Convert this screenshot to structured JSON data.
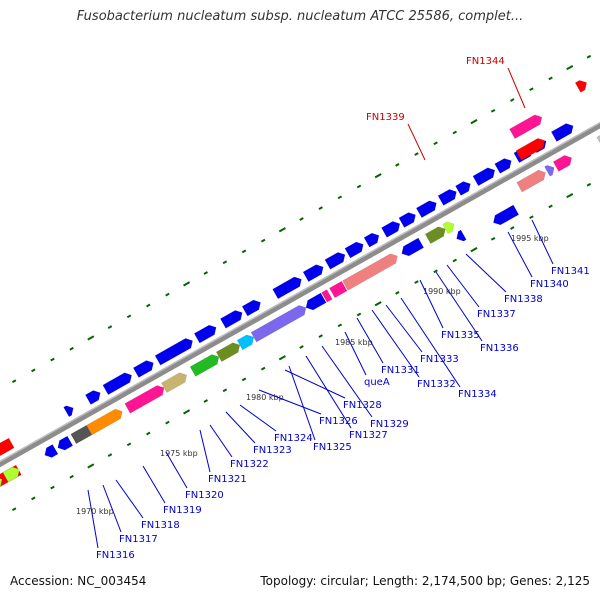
{
  "header": {
    "title": "Fusobacterium nucleatum subsp. nucleatum ATCC 25586, complet..."
  },
  "footer": {
    "accession": "Accession: NC_003454",
    "topology": "Topology: circular; Length: 2,174,500 bp; Genes: 2,125"
  },
  "colors": {
    "backbone": "#8c8c8c",
    "gene_default": "#0000ee",
    "label": "#0000cc",
    "label_highlight": "#cc0000",
    "gc_ticks": "#006600"
  },
  "scale": {
    "kbp_marks": [
      "1970 kbp",
      "1975 kbp",
      "1980 kbp",
      "1985 kbp",
      "1990 kbp",
      "1995 kbp"
    ]
  },
  "genes": [
    {
      "label": "FN1316",
      "highlight": false
    },
    {
      "label": "FN1317",
      "highlight": false
    },
    {
      "label": "FN1318",
      "highlight": false
    },
    {
      "label": "FN1319",
      "highlight": false
    },
    {
      "label": "FN1320",
      "highlight": false
    },
    {
      "label": "FN1321",
      "highlight": false
    },
    {
      "label": "FN1322",
      "highlight": false
    },
    {
      "label": "FN1323",
      "highlight": false
    },
    {
      "label": "FN1324",
      "highlight": false
    },
    {
      "label": "FN1325",
      "highlight": false
    },
    {
      "label": "FN1326",
      "highlight": false
    },
    {
      "label": "FN1327",
      "highlight": false
    },
    {
      "label": "FN1328",
      "highlight": false
    },
    {
      "label": "FN1329",
      "highlight": false
    },
    {
      "label": "queA",
      "highlight": false
    },
    {
      "label": "FN1331",
      "highlight": false
    },
    {
      "label": "FN1332",
      "highlight": false
    },
    {
      "label": "FN1333",
      "highlight": false
    },
    {
      "label": "FN1334",
      "highlight": false
    },
    {
      "label": "FN1335",
      "highlight": false
    },
    {
      "label": "FN1336",
      "highlight": false
    },
    {
      "label": "FN1337",
      "highlight": false
    },
    {
      "label": "FN1338",
      "highlight": false
    },
    {
      "label": "FN1339",
      "highlight": true
    },
    {
      "label": "FN1340",
      "highlight": false
    },
    {
      "label": "FN1341",
      "highlight": false
    },
    {
      "label": "FN1344",
      "highlight": true
    }
  ]
}
